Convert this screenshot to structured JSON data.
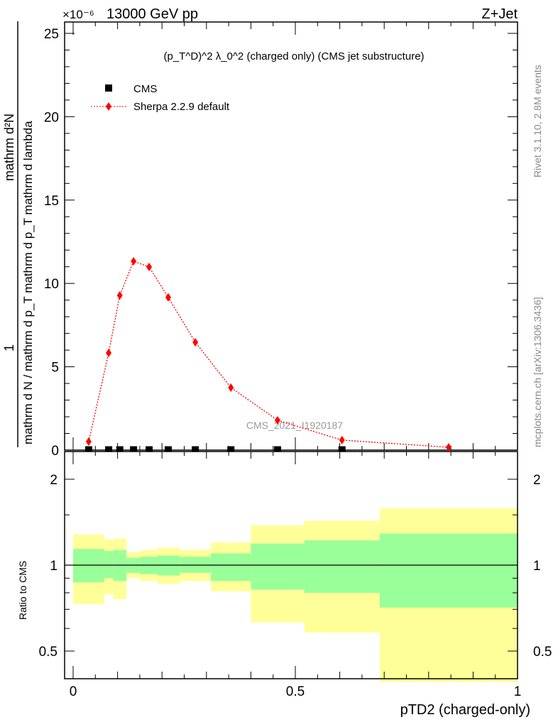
{
  "header": {
    "left": "13000 GeV pp",
    "right": "Z+Jet",
    "exponent": "×10⁻⁶"
  },
  "side_labels": {
    "rivet": "Rivet 3.1.10,  2.8M events",
    "mcplots": "mcplots.cern.ch [arXiv:1306.3436]"
  },
  "watermark": "CMS_2021_I1920187",
  "chart_data": [
    {
      "type": "scatter",
      "title": "(p_T^D)^2 λ_0^2 (charged only) (CMS jet substructure)",
      "xlabel": "pTD2 (charged-only)",
      "ylabel_numerator": "mathrm d²N",
      "ylabel_one": "1",
      "ylabel": "mathrm d N / mathrm d p_T mathrm d p_T mathrm d lambda",
      "xlim": [
        0,
        1
      ],
      "ylim": [
        0,
        25
      ],
      "y_scale_factor": "1e-6",
      "yticks": [
        "0",
        "5",
        "10",
        "15",
        "20",
        "25"
      ],
      "yticks_values": [
        0,
        5,
        10,
        15,
        20,
        25
      ],
      "legend_position": "top-left",
      "series": [
        {
          "name": "CMS",
          "color": "#000000",
          "marker": "square",
          "x": [
            0.035,
            0.08,
            0.105,
            0.136,
            0.171,
            0.214,
            0.275,
            0.355,
            0.46,
            0.605
          ],
          "y": [
            0.02,
            0.02,
            0.02,
            0.02,
            0.02,
            0.02,
            0.02,
            0.02,
            0.02,
            0.02
          ]
        },
        {
          "name": "Sherpa 2.2.9 default",
          "color": "#ff0000",
          "marker": "diamond",
          "line": "dotted",
          "x": [
            0.035,
            0.08,
            0.105,
            0.136,
            0.171,
            0.214,
            0.275,
            0.355,
            0.46,
            0.605,
            0.845
          ],
          "y": [
            0.51,
            5.83,
            9.28,
            11.33,
            10.99,
            9.16,
            6.47,
            3.75,
            1.79,
            0.6,
            0.17
          ]
        }
      ]
    },
    {
      "type": "area",
      "ylabel": "Ratio to CMS",
      "xlabel": "pTD2 (charged-only)",
      "xlim": [
        0,
        1
      ],
      "ylim": [
        0.36,
        2.5
      ],
      "yscale": "log",
      "xticks": [
        "0",
        "0.5",
        "1"
      ],
      "xticks_values": [
        0,
        0.5,
        1
      ],
      "yticks": [
        "0.5",
        "1",
        "2"
      ],
      "yticks_values": [
        0.5,
        1,
        2
      ],
      "reference_line": 1,
      "band_colors": {
        "outer": "#ffff99",
        "inner": "#99ff99"
      },
      "bin_edges": [
        0,
        0.07,
        0.09,
        0.12,
        0.15,
        0.19,
        0.24,
        0.31,
        0.4,
        0.52,
        0.69,
        1.0
      ],
      "outer_band_hi": [
        1.28,
        1.23,
        1.24,
        1.11,
        1.13,
        1.15,
        1.13,
        1.2,
        1.38,
        1.43,
        1.58
      ],
      "outer_band_lo": [
        0.73,
        0.79,
        0.76,
        0.9,
        0.88,
        0.86,
        0.88,
        0.81,
        0.63,
        0.58,
        0.39
      ],
      "inner_band_hi": [
        1.14,
        1.12,
        1.13,
        1.06,
        1.07,
        1.08,
        1.07,
        1.1,
        1.19,
        1.22,
        1.29
      ],
      "inner_band_lo": [
        0.87,
        0.9,
        0.88,
        0.94,
        0.93,
        0.92,
        0.94,
        0.88,
        0.82,
        0.8,
        0.71
      ]
    }
  ]
}
